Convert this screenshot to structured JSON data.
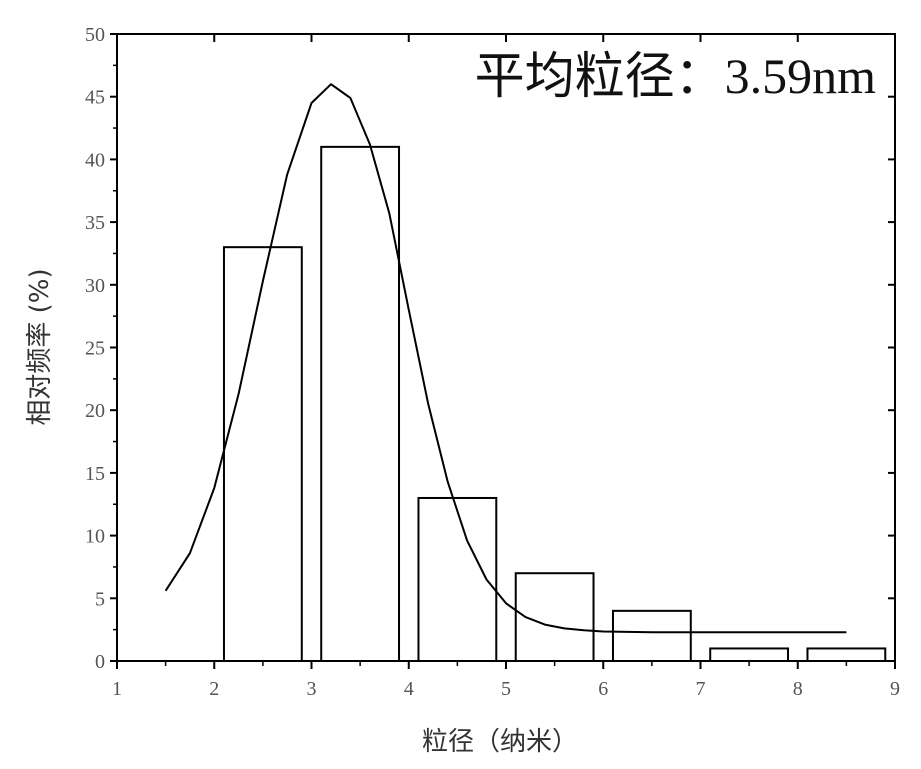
{
  "chart_data": {
    "type": "bar",
    "annotation": "平均粒径：3.59nm",
    "xlabel": "粒径（纳米）",
    "ylabel": "相对频率 (%)",
    "xlim": [
      1,
      9
    ],
    "ylim": [
      0,
      50
    ],
    "x_ticks": [
      "1",
      "2",
      "3",
      "4",
      "5",
      "6",
      "7",
      "8",
      "9"
    ],
    "y_ticks": [
      "0",
      "5",
      "10",
      "15",
      "20",
      "25",
      "30",
      "35",
      "40",
      "45",
      "50"
    ],
    "bars": [
      {
        "x0": 2.1,
        "x1": 2.9,
        "value": 33
      },
      {
        "x0": 3.1,
        "x1": 3.9,
        "value": 41
      },
      {
        "x0": 4.1,
        "x1": 4.9,
        "value": 13
      },
      {
        "x0": 5.1,
        "x1": 5.9,
        "value": 7
      },
      {
        "x0": 6.1,
        "x1": 6.9,
        "value": 4
      },
      {
        "x0": 7.1,
        "x1": 7.9,
        "value": 1
      },
      {
        "x0": 8.1,
        "x1": 8.9,
        "value": 1
      }
    ],
    "fit_curve": {
      "type": "line",
      "points": [
        [
          1.5,
          5.6
        ],
        [
          1.75,
          8.6
        ],
        [
          2.0,
          13.8
        ],
        [
          2.25,
          21.3
        ],
        [
          2.5,
          30.3
        ],
        [
          2.75,
          38.8
        ],
        [
          3.0,
          44.5
        ],
        [
          3.2,
          46.0
        ],
        [
          3.4,
          44.9
        ],
        [
          3.6,
          41.2
        ],
        [
          3.8,
          35.7
        ],
        [
          4.0,
          28.0
        ],
        [
          4.2,
          20.5
        ],
        [
          4.4,
          14.3
        ],
        [
          4.6,
          9.6
        ],
        [
          4.8,
          6.5
        ],
        [
          5.0,
          4.6
        ],
        [
          5.2,
          3.5
        ],
        [
          5.4,
          2.9
        ],
        [
          5.6,
          2.6
        ],
        [
          5.8,
          2.45
        ],
        [
          6.0,
          2.35
        ],
        [
          6.5,
          2.3
        ],
        [
          7.0,
          2.3
        ],
        [
          7.5,
          2.3
        ],
        [
          8.0,
          2.3
        ],
        [
          8.5,
          2.3
        ]
      ]
    },
    "grid": false,
    "colors": {
      "bar_stroke": "#000000",
      "bar_fill": "#ffffff",
      "axis": "#000000",
      "curve": "#000000"
    }
  }
}
